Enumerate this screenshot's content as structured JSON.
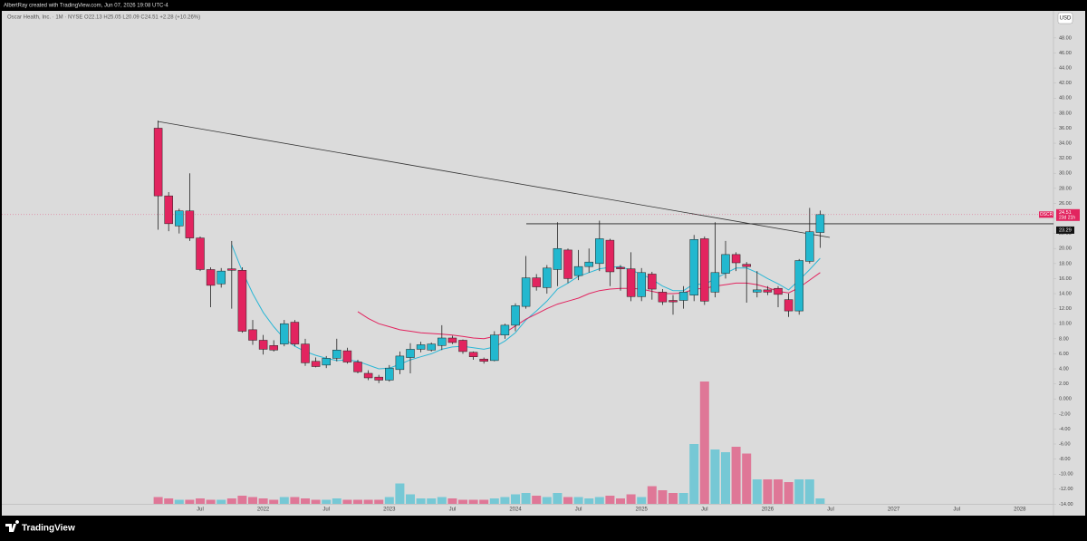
{
  "header": {
    "text": "AlbertRay created with TradingView.com, Jun 07, 2026 19:08 UTC-4"
  },
  "footer": {
    "logo": "TradingView"
  },
  "chart_data": {
    "type": "candlestick",
    "legend_text": "Oscar Health, Inc. · 1M · NYSE  O22.13 H25.05 L20.09 C24.51 +2.28 (+10.26%)",
    "currency": "USD",
    "countdown": "23d 21h",
    "level": 23.29,
    "up_color": "#22b8cf",
    "down_color": "#e2245f",
    "ylim": [
      -15.4,
      51.6
    ],
    "y2lim": [
      0,
      100
    ],
    "yticks": [
      {
        "value": -14,
        "label": "-14.00"
      },
      {
        "value": -12,
        "label": "-12.00"
      },
      {
        "value": -10,
        "label": "-10.00"
      },
      {
        "value": -8,
        "label": "-8.00"
      },
      {
        "value": -6,
        "label": "-6.00"
      },
      {
        "value": -4,
        "label": "-4.00"
      },
      {
        "value": -2,
        "label": "-2.00"
      },
      {
        "value": 0,
        "label": "0.000"
      },
      {
        "value": 2,
        "label": "2.00"
      },
      {
        "value": 4,
        "label": "4.00"
      },
      {
        "value": 6,
        "label": "6.00"
      },
      {
        "value": 8,
        "label": "8.00"
      },
      {
        "value": 10,
        "label": "10.00"
      },
      {
        "value": 12,
        "label": "12.00"
      },
      {
        "value": 14,
        "label": "14.00"
      },
      {
        "value": 16,
        "label": "16.00"
      },
      {
        "value": 18,
        "label": "18.00"
      },
      {
        "value": 20,
        "label": "20.00"
      },
      {
        "value": 22,
        "label": "22.00"
      },
      {
        "value": 24,
        "label": "24.00"
      },
      {
        "value": 26,
        "label": "26.00"
      },
      {
        "value": 28,
        "label": "28.00"
      },
      {
        "value": 30,
        "label": "30.00"
      },
      {
        "value": 32,
        "label": "32.00"
      },
      {
        "value": 34,
        "label": "34.00"
      },
      {
        "value": 36,
        "label": "36.00"
      },
      {
        "value": 38,
        "label": "38.00"
      },
      {
        "value": 40,
        "label": "40.00"
      },
      {
        "value": 42,
        "label": "42.00"
      },
      {
        "value": 44,
        "label": "44.00"
      },
      {
        "value": 46,
        "label": "46.00"
      },
      {
        "value": 48,
        "label": "48.00"
      }
    ],
    "categories": [
      null,
      null,
      null,
      null,
      "Jul",
      null,
      null,
      null,
      null,
      null,
      "2022",
      null,
      null,
      null,
      null,
      null,
      "Jul",
      null,
      null,
      null,
      null,
      null,
      "2023",
      null,
      null,
      null,
      null,
      null,
      "Jul",
      null,
      null,
      null,
      null,
      null,
      "2024",
      null,
      null,
      null,
      null,
      null,
      "Jul",
      null,
      null,
      null,
      null,
      null,
      "2025",
      null,
      null,
      null,
      null,
      null,
      "Jul",
      null,
      null,
      null,
      null,
      null,
      "2026",
      null,
      null,
      null,
      null,
      null,
      "Jul",
      null,
      null,
      null,
      null,
      null,
      "2027",
      null,
      null,
      null,
      null,
      null,
      "Jul",
      null,
      null,
      null,
      null,
      null,
      "2028",
      null,
      null
    ],
    "series": [
      {
        "name": "OSCR",
        "open": [
          36,
          27,
          23,
          25,
          21.4,
          17.2,
          15.3,
          17.3,
          17.1,
          9.2,
          7.8,
          7.1,
          7.3,
          10.2,
          7.3,
          5,
          4.5,
          5.4,
          6.4,
          4.9,
          3.4,
          2.9,
          2.5,
          3.9,
          5.5,
          6.6,
          6.5,
          7.1,
          8.1,
          7.8,
          6.2,
          5.3,
          5.1,
          8.5,
          9.8,
          12.3,
          16.1,
          14.8,
          17.2,
          19.8,
          16.4,
          17.6,
          18,
          21.1,
          17.5,
          17.3,
          13.6,
          16.6,
          14.2,
          13.1,
          13.1,
          13.8,
          21.3,
          14.2,
          16.7,
          19.2,
          17.9,
          14.2,
          14.5,
          14.7,
          13.2,
          11.7,
          18.3,
          22.13,
          null,
          null,
          null,
          null,
          null,
          null,
          null,
          null,
          null,
          null,
          null,
          null,
          null,
          null,
          null,
          null,
          null,
          null,
          null,
          null,
          null
        ],
        "high": [
          37,
          27.5,
          25.3,
          30,
          21.6,
          17.5,
          17.4,
          21,
          17.5,
          10.5,
          8.5,
          7.8,
          10.5,
          10.5,
          8,
          5.5,
          5.7,
          8,
          6.8,
          5.2,
          3.8,
          3.2,
          4.5,
          6.3,
          7.4,
          7.6,
          7.5,
          9.8,
          8.4,
          7.9,
          6.3,
          5.5,
          9,
          10,
          12.7,
          19,
          16.6,
          17.8,
          23.5,
          20,
          19.8,
          20,
          23.7,
          21.3,
          17.8,
          19.5,
          17.4,
          16.9,
          14.6,
          13.8,
          15,
          21.8,
          21.6,
          23.5,
          21,
          19.5,
          18.2,
          17,
          15,
          15,
          14,
          18.6,
          25.4,
          25.05,
          null,
          null,
          null,
          null,
          null,
          null,
          null,
          null,
          null,
          null,
          null,
          null,
          null,
          null,
          null,
          null,
          null,
          null,
          null,
          null,
          null
        ],
        "low": [
          22.5,
          22.3,
          22,
          21,
          17,
          12.2,
          14.8,
          12,
          8.8,
          7.2,
          5.9,
          6.3,
          7,
          7,
          4.4,
          4.2,
          4.1,
          5,
          4.7,
          3.4,
          2.5,
          2.1,
          2.3,
          3.3,
          3.4,
          6.2,
          6.3,
          6.5,
          7.3,
          6,
          5.2,
          4.7,
          5,
          8,
          9,
          12,
          14.4,
          14,
          15,
          15.4,
          15.8,
          16.8,
          17,
          15,
          14.4,
          13,
          13,
          13.2,
          12.5,
          11.2,
          12,
          13,
          12.5,
          13.5,
          16,
          17,
          12.8,
          13.5,
          13.8,
          12.2,
          10.9,
          11.2,
          18,
          20.09,
          null,
          null,
          null,
          null,
          null,
          null,
          null,
          null,
          null,
          null,
          null,
          null,
          null,
          null,
          null,
          null,
          null,
          null,
          null,
          null,
          null
        ],
        "close": [
          27,
          23.3,
          25,
          21.4,
          17.2,
          15.1,
          17,
          17.1,
          9,
          7.8,
          6.6,
          6.5,
          10,
          7.3,
          4.8,
          4.3,
          5.4,
          6.5,
          4.9,
          3.6,
          2.8,
          2.5,
          4.1,
          5.7,
          6.6,
          7.2,
          7.3,
          8.1,
          7.5,
          6.3,
          5.6,
          5,
          8.5,
          9.8,
          12.4,
          16.1,
          14.9,
          17.4,
          20,
          16,
          17.6,
          18.2,
          21.3,
          16.9,
          17.3,
          13.6,
          16.8,
          14.6,
          12.9,
          12.9,
          14.2,
          21.2,
          13,
          16.8,
          19.2,
          18.1,
          17.6,
          14.5,
          14.2,
          13.9,
          11.7,
          18.4,
          22.23,
          24.51,
          null,
          null,
          null,
          null,
          null,
          null,
          null,
          null,
          null,
          null,
          null,
          null,
          null,
          null,
          null,
          null,
          null,
          null,
          null,
          null,
          null
        ],
        "volume": [
          5,
          4,
          3,
          3,
          4,
          3,
          3,
          4,
          6,
          5,
          4,
          3,
          5,
          5,
          4,
          3,
          3,
          4,
          3,
          3,
          3,
          3,
          5,
          15,
          7,
          4,
          4,
          5,
          4,
          3,
          3,
          3,
          4,
          5,
          7,
          8,
          6,
          5,
          8,
          5,
          5,
          4,
          5,
          6,
          4,
          7,
          5,
          13,
          10,
          8,
          8,
          44,
          90,
          40,
          38,
          42,
          37,
          18,
          18,
          18,
          16,
          18,
          18,
          4,
          null,
          null,
          null,
          null,
          null,
          null,
          null,
          null,
          null,
          null,
          null,
          null,
          null,
          null,
          null,
          null,
          null,
          null,
          null,
          null,
          null
        ]
      }
    ],
    "moving_averages": [
      {
        "color": "#2bb7d6",
        "values": [
          null,
          null,
          null,
          null,
          null,
          null,
          null,
          20.5,
          17,
          14,
          11.5,
          9.6,
          8,
          7,
          6.3,
          5.8,
          5.4,
          5.1,
          5.2,
          5,
          4.5,
          4,
          4.1,
          4.6,
          5.2,
          5.6,
          6,
          6.6,
          6.9,
          7,
          6.8,
          6.6,
          6.9,
          7.7,
          8.8,
          10.5,
          11.7,
          13,
          14.6,
          15.4,
          16.3,
          16.8,
          17.3,
          17.5,
          17.6,
          17.1,
          16.6,
          15.9,
          15,
          14.4,
          14.4,
          15.3,
          15.2,
          16,
          16.7,
          17.4,
          17.4,
          16.8,
          16,
          15.3,
          14.5,
          15.8,
          17.2,
          18.7,
          null,
          null,
          null,
          null,
          null,
          null,
          null,
          null,
          null,
          null,
          null,
          null,
          null,
          null,
          null,
          null,
          null,
          null,
          null,
          null,
          null
        ]
      },
      {
        "color": "#e2245f",
        "values": [
          null,
          null,
          null,
          null,
          null,
          null,
          null,
          null,
          null,
          null,
          null,
          null,
          null,
          null,
          null,
          null,
          null,
          null,
          null,
          11.6,
          10.7,
          10,
          9.6,
          9.2,
          9,
          8.8,
          8.7,
          8.6,
          8.5,
          8.3,
          8.1,
          8,
          8.3,
          8.8,
          9.7,
          10.6,
          11.3,
          12,
          12.6,
          13,
          13.4,
          14,
          14.4,
          14.6,
          14.7,
          14.7,
          14.6,
          14.3,
          14,
          14,
          14.1,
          14.6,
          14.7,
          15,
          15.2,
          15.4,
          15.4,
          15.2,
          14.8,
          14.3,
          14.1,
          14.8,
          15.8,
          16.8,
          null,
          null,
          null,
          null,
          null,
          null,
          null,
          null,
          null,
          null,
          null,
          null,
          null,
          null,
          null,
          null,
          null,
          null,
          null,
          null,
          null
        ]
      }
    ]
  }
}
